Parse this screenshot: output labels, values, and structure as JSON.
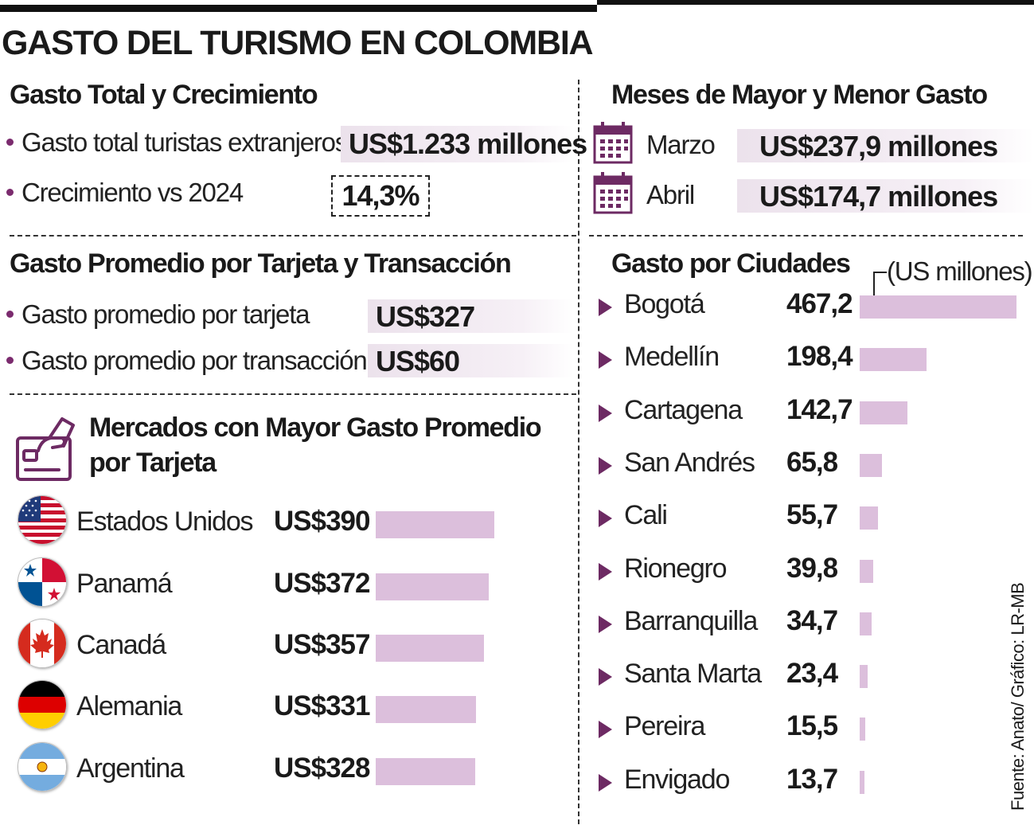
{
  "title": "GASTO DEL TURISMO EN COLOMBIA",
  "total_section": {
    "title": "Gasto Total y Crecimiento",
    "rows": [
      {
        "label": "Gasto total turistas extranjeros",
        "value": "US$1.233 millones"
      },
      {
        "label": "Crecimiento vs 2024",
        "value": "14,3%"
      }
    ]
  },
  "months_section": {
    "title": "Meses de Mayor y Menor Gasto",
    "rows": [
      {
        "label": "Marzo",
        "value": "US$237,9 millones",
        "icon": "calendar-icon"
      },
      {
        "label": "Abril",
        "value": "US$174,7 millones",
        "icon": "calendar-icon"
      }
    ]
  },
  "average_section": {
    "title": "Gasto Promedio por Tarjeta y Transacción",
    "rows": [
      {
        "label": "Gasto promedio por tarjeta",
        "value": "US$327"
      },
      {
        "label": "Gasto promedio por transacción",
        "value": "US$60"
      }
    ]
  },
  "markets_section": {
    "title_line1": "Mercados con Mayor Gasto Promedio",
    "title_line2": "por Tarjeta",
    "icon": "card-payment-icon"
  },
  "cities_section": {
    "title": "Gasto por Ciudades",
    "unit_note": "(US millones)"
  },
  "source": "Fuente: Anato/ Gráfico: LR-MB",
  "colors": {
    "bar": "#dcbfdc",
    "accent": "#6d2a63",
    "highlight": "#ece2ec"
  },
  "chart_data": [
    {
      "type": "bar",
      "orientation": "horizontal",
      "title": "Mercados con Mayor Gasto Promedio por Tarjeta",
      "categories": [
        "Estados Unidos",
        "Panamá",
        "Canadá",
        "Alemania",
        "Argentina"
      ],
      "values": [
        390,
        372,
        357,
        331,
        328
      ],
      "value_labels": [
        "US$390",
        "US$372",
        "US$357",
        "US$331",
        "US$328"
      ],
      "flags": [
        "usa-flag-icon",
        "panama-flag-icon",
        "canada-flag-icon",
        "germany-flag-icon",
        "argentina-flag-icon"
      ],
      "unit": "US$"
    },
    {
      "type": "bar",
      "orientation": "horizontal",
      "title": "Gasto por Ciudades",
      "unit": "US millones",
      "categories": [
        "Bogotá",
        "Medellín",
        "Cartagena",
        "San Andrés",
        "Cali",
        "Rionegro",
        "Barranquilla",
        "Santa Marta",
        "Pereira",
        "Envigado"
      ],
      "values": [
        467.2,
        198.4,
        142.7,
        65.8,
        55.7,
        39.8,
        34.7,
        23.4,
        15.5,
        13.7
      ],
      "value_labels": [
        "467,2",
        "198,4",
        "142,7",
        "65,8",
        "55,7",
        "39,8",
        "34,7",
        "23,4",
        "15,5",
        "13,7"
      ]
    }
  ]
}
